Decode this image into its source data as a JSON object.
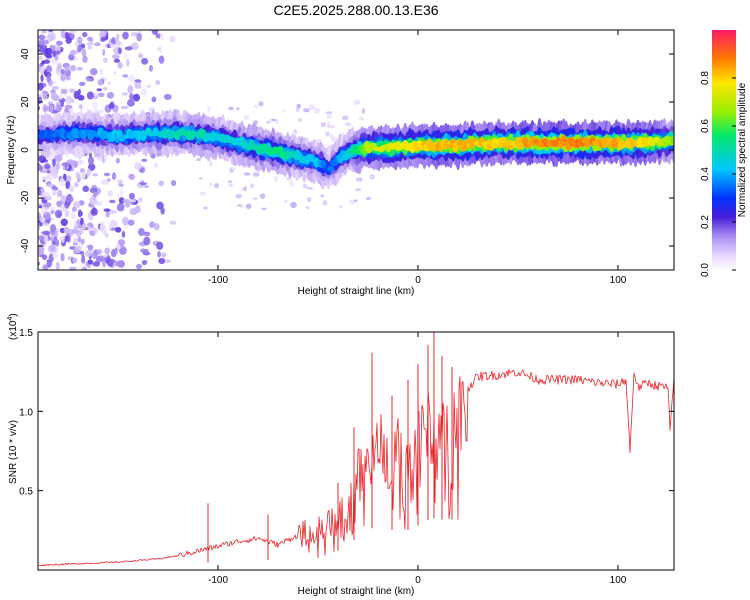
{
  "title": "C2E5.2025.288.00.13.E36",
  "chart_data": [
    {
      "type": "heatmap",
      "xlabel": "Height of straight line (km)",
      "ylabel": "Frequency (Hz)",
      "xlim": [
        -190,
        128
      ],
      "ylim": [
        -50,
        50
      ],
      "xticks": [
        -100,
        0,
        100
      ],
      "yticks": [
        -40,
        -20,
        0,
        20,
        40
      ],
      "colorbar": {
        "label": "Normalized spectral amplitude",
        "range": [
          0,
          1
        ],
        "ticks": [
          0.0,
          0.2,
          0.4,
          0.6,
          0.8
        ],
        "tick_labels": [
          "0.0",
          "0.2",
          "0.4",
          "0.6",
          "0.8"
        ]
      },
      "ridge": {
        "x": [
          -185,
          -170,
          -150,
          -130,
          -115,
          -100,
          -90,
          -80,
          -70,
          -60,
          -50,
          -45,
          -40,
          -35,
          -25,
          -15,
          0,
          10,
          20,
          40,
          60,
          80,
          100,
          115,
          128
        ],
        "frequency": [
          6,
          7,
          6,
          7,
          7,
          5,
          3,
          1,
          -1,
          -3,
          -5,
          -8,
          -4,
          -1,
          1,
          1,
          2,
          2,
          2,
          3,
          3,
          3,
          3,
          3,
          4
        ],
        "amplitude": [
          0.35,
          0.4,
          0.45,
          0.5,
          0.55,
          0.5,
          0.5,
          0.55,
          0.6,
          0.5,
          0.45,
          0.35,
          0.4,
          0.5,
          0.75,
          0.8,
          0.85,
          0.9,
          0.9,
          0.85,
          0.95,
          0.95,
          0.9,
          0.85,
          0.7
        ]
      }
    },
    {
      "type": "line",
      "xlabel": "Height of straight line (km)",
      "ylabel": "SNR (10 * v/v)",
      "y_scale_label": "(x10",
      "y_scale_exponent": "4",
      "y_scale_suffix": ")",
      "xlim": [
        -190,
        128
      ],
      "ylim": [
        0,
        1.5
      ],
      "xticks": [
        -100,
        0,
        100
      ],
      "yticks": [
        0.5,
        1.0,
        1.5
      ],
      "ytick_labels": [
        "0.5",
        "1.0",
        "1.5"
      ],
      "series": [
        {
          "name": "SNR",
          "color": "#e8242b",
          "x": [
            -190,
            -170,
            -150,
            -130,
            -120,
            -110,
            -100,
            -90,
            -80,
            -70,
            -60,
            -50,
            -40,
            -35,
            -30,
            -25,
            -20,
            -15,
            -10,
            -5,
            0,
            5,
            10,
            15,
            20,
            25,
            30,
            40,
            50,
            60,
            70,
            80,
            90,
            100,
            104,
            106,
            108,
            110,
            115,
            120,
            125,
            126,
            128
          ],
          "y": [
            0.03,
            0.04,
            0.05,
            0.07,
            0.09,
            0.12,
            0.15,
            0.18,
            0.2,
            0.16,
            0.22,
            0.25,
            0.35,
            0.45,
            0.6,
            0.72,
            0.8,
            0.7,
            0.75,
            0.72,
            0.8,
            0.9,
            0.95,
            0.85,
            1.0,
            1.15,
            1.22,
            1.23,
            1.25,
            1.2,
            1.2,
            1.2,
            1.18,
            1.17,
            1.2,
            0.75,
            1.25,
            1.15,
            1.18,
            1.16,
            1.15,
            0.87,
            1.2
          ],
          "spikes": [
            {
              "x": -105,
              "y": 0.42
            },
            {
              "x": -75,
              "y": 0.35
            },
            {
              "x": -40,
              "y": 0.55
            },
            {
              "x": -32,
              "y": 0.9
            },
            {
              "x": -23,
              "y": 1.37
            },
            {
              "x": -13,
              "y": 1.1
            },
            {
              "x": -5,
              "y": 1.2
            },
            {
              "x": 0,
              "y": 1.3
            },
            {
              "x": 5,
              "y": 1.42
            },
            {
              "x": 8,
              "y": 1.52
            },
            {
              "x": 12,
              "y": 1.35
            },
            {
              "x": 17,
              "y": 1.28
            }
          ]
        }
      ]
    }
  ],
  "colors": {
    "line": "#e8242b",
    "axis": "#000000",
    "background": "#ffffff"
  }
}
